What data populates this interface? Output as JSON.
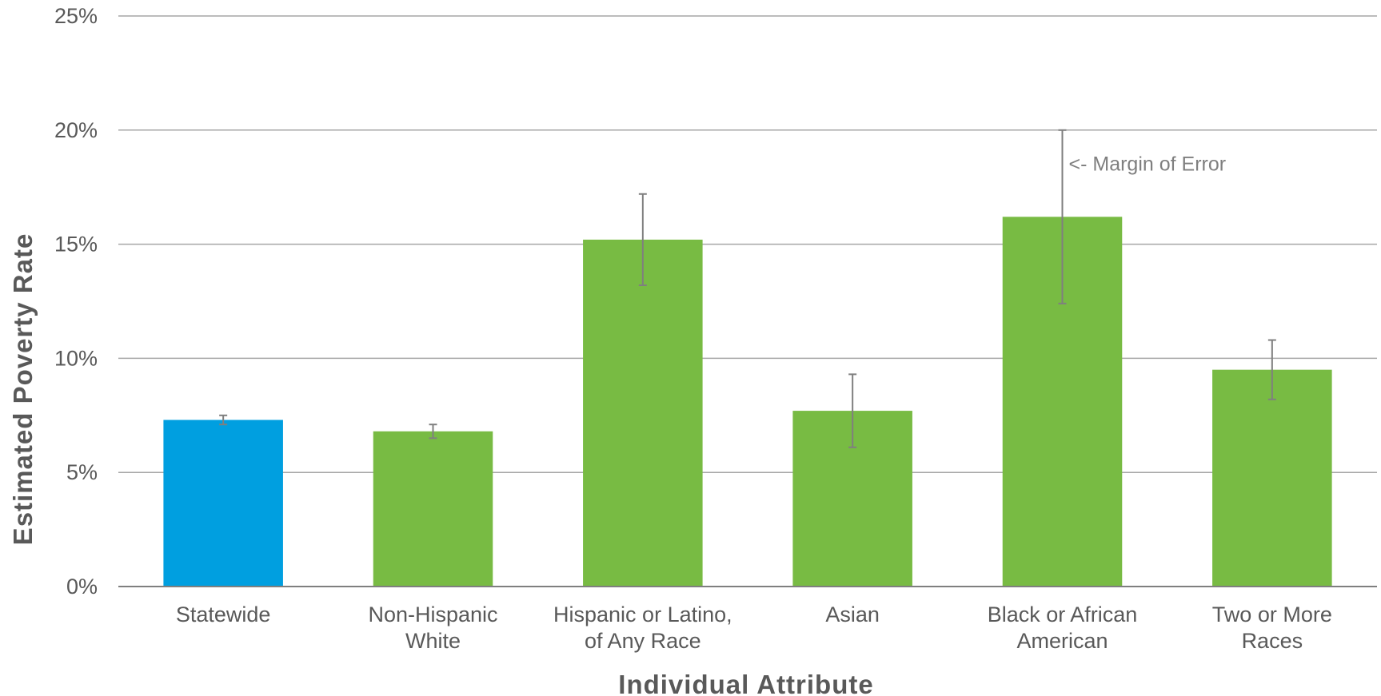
{
  "chart_data": {
    "type": "bar",
    "xlabel": "Individual  Attribute",
    "ylabel": "Estimated Poverty Rate",
    "ylim": [
      0,
      25
    ],
    "yticks": [
      0,
      5,
      10,
      15,
      20,
      25
    ],
    "ytick_labels": [
      "0%",
      "5%",
      "10%",
      "15%",
      "20%",
      "25%"
    ],
    "grid": true,
    "legend": "none",
    "categories": [
      [
        "Statewide"
      ],
      [
        "Non-Hispanic",
        "White"
      ],
      [
        "Hispanic or Latino,",
        "of Any Race"
      ],
      [
        "Asian"
      ],
      [
        "Black or African",
        "American"
      ],
      [
        "Two or More",
        "Races"
      ]
    ],
    "values": [
      7.3,
      6.8,
      15.2,
      7.7,
      16.2,
      9.5
    ],
    "error_low": [
      7.1,
      6.5,
      13.2,
      6.1,
      12.4,
      8.2
    ],
    "error_high": [
      7.5,
      7.1,
      17.2,
      9.3,
      20.0,
      10.8
    ],
    "bar_colors": [
      "#009fe0",
      "#78bb43",
      "#78bb43",
      "#78bb43",
      "#78bb43",
      "#78bb43"
    ],
    "annotations": [
      {
        "text": "<- Margin of Error",
        "category_index": 4,
        "y": 18.5
      }
    ]
  }
}
